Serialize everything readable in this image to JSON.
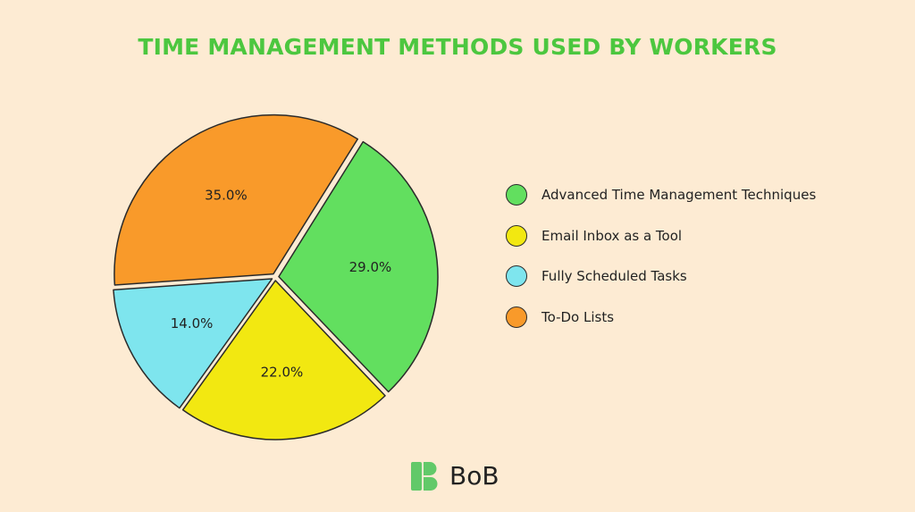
{
  "chart_data": {
    "type": "pie",
    "title": "TIME MANAGEMENT METHODS USED BY WORKERS",
    "slices": [
      {
        "label": "Advanced Time Management Techniques",
        "value": 29.0,
        "display": "29.0%",
        "color": "#62df5f"
      },
      {
        "label": "Email Inbox as a Tool",
        "value": 22.0,
        "display": "22.0%",
        "color": "#f2e811"
      },
      {
        "label": "Fully Scheduled Tasks",
        "value": 14.0,
        "display": "14.0%",
        "color": "#7ee5ee"
      },
      {
        "label": "To-Do Lists",
        "value": 35.0,
        "display": "35.0%",
        "color": "#f99a2a"
      }
    ],
    "legend_position": "right",
    "exploded": true
  },
  "brand": {
    "name": "BoB",
    "logo_icon": "bob-logo-icon",
    "logo_color": "#62c969"
  }
}
